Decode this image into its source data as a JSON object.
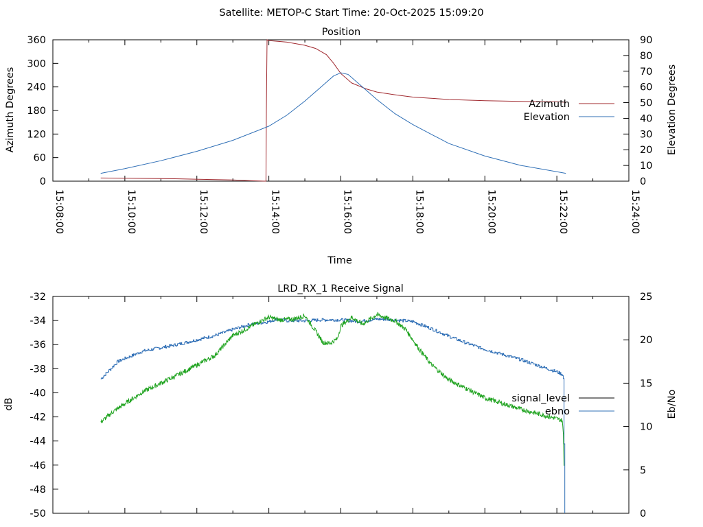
{
  "header": {
    "title": "Satellite: METOP-C    Start Time: 20-Oct-2025 15:09:20"
  },
  "colors": {
    "azimuth": "#a0282e",
    "elevation": "#2f6fb6",
    "signal_level": "#000000",
    "ebno_trace": "#1fa31f",
    "ebno_legend": "#2f6fb6"
  },
  "chart_data": [
    {
      "type": "line",
      "title": "Position",
      "xlabel": "Time",
      "ylabel": "Azimuth Degrees",
      "y2label": "Elevation Degrees",
      "x_ticks": [
        "15:08:00",
        "15:10:00",
        "15:12:00",
        "15:14:00",
        "15:16:00",
        "15:18:00",
        "15:20:00",
        "15:22:00",
        "15:24:00"
      ],
      "x_tick_minutes": [
        0,
        2,
        4,
        6,
        8,
        10,
        12,
        14,
        16
      ],
      "xlim": [
        0,
        16
      ],
      "y_ticks": [
        "0",
        "60",
        "120",
        "180",
        "240",
        "300",
        "360"
      ],
      "y_tick_values": [
        0,
        60,
        120,
        180,
        240,
        300,
        360
      ],
      "ylim": [
        0,
        360
      ],
      "y2_ticks": [
        "0",
        "10",
        "20",
        "30",
        "40",
        "50",
        "60",
        "70",
        "80",
        "90"
      ],
      "y2_tick_values": [
        0,
        10,
        20,
        30,
        40,
        50,
        60,
        70,
        80,
        90
      ],
      "y2lim": [
        0,
        90
      ],
      "legend_position": "right",
      "series": [
        {
          "name": "Azimuth",
          "axis": "y1",
          "x": [
            1.33,
            2.5,
            3.5,
            4.5,
            5.0,
            5.5,
            5.92,
            5.93,
            5.95,
            5.98,
            6.0,
            6.5,
            7.0,
            7.3,
            7.6,
            7.8,
            8.0,
            8.3,
            8.7,
            9.0,
            9.5,
            10.0,
            11.0,
            12.0,
            13.0,
            14.0,
            14.25
          ],
          "y": [
            8,
            7,
            6,
            4,
            3,
            1,
            0,
            180,
            360,
            359,
            358,
            354,
            346,
            338,
            322,
            300,
            274,
            250,
            235,
            227,
            220,
            214,
            208,
            205,
            203,
            202,
            201
          ]
        },
        {
          "name": "Elevation",
          "axis": "y2",
          "x": [
            1.33,
            2,
            3,
            4,
            5,
            6,
            6.5,
            7,
            7.5,
            7.8,
            8.0,
            8.2,
            8.5,
            9,
            9.5,
            10,
            11,
            12,
            13,
            14,
            14.25
          ],
          "y": [
            5,
            8,
            13,
            19,
            26,
            35,
            42,
            51,
            61,
            67,
            69,
            68,
            62,
            52,
            43,
            36,
            24,
            16,
            10,
            6,
            5
          ]
        }
      ]
    },
    {
      "type": "line",
      "title": "LRD_RX_1 Receive Signal",
      "xlabel": "",
      "ylabel": "dB",
      "y2label": "Eb/No",
      "xlim": [
        0,
        16
      ],
      "y_ticks": [
        "-50",
        "-48",
        "-46",
        "-44",
        "-42",
        "-40",
        "-38",
        "-36",
        "-34",
        "-32"
      ],
      "y_tick_values": [
        -50,
        -48,
        -46,
        -44,
        -42,
        -40,
        -38,
        -36,
        -34,
        -32
      ],
      "ylim": [
        -50,
        -32
      ],
      "y2_ticks": [
        "0",
        "5",
        "10",
        "15",
        "20",
        "25"
      ],
      "y2_tick_values": [
        0,
        5,
        10,
        15,
        20,
        25
      ],
      "y2lim": [
        0,
        25
      ],
      "legend_position": "right",
      "series": [
        {
          "name": "signal_level",
          "axis": "y1",
          "x": [],
          "y": []
        },
        {
          "name": "ebno",
          "axis": "y2",
          "x": [
            1.33,
            1.8,
            2.5,
            3.5,
            4.5,
            5.0,
            5.5,
            6.0,
            6.2,
            6.5,
            7.0,
            7.5,
            8.0,
            8.5,
            9.0,
            9.5,
            10.0,
            10.5,
            11.0,
            11.5,
            12.0,
            13.0,
            14.0,
            14.15,
            14.18,
            14.2,
            14.22
          ],
          "y": [
            15.5,
            17.5,
            18.7,
            19.5,
            20.5,
            21.2,
            21.8,
            22.1,
            22.4,
            22.2,
            22.2,
            22.3,
            22.3,
            22.1,
            22.4,
            22.3,
            22.1,
            21.3,
            20.4,
            19.6,
            18.9,
            17.7,
            16.3,
            16.0,
            15.5,
            8,
            0
          ]
        },
        {
          "name": "",
          "axis": "y2",
          "role": "green-trace",
          "x": [
            1.33,
            1.7,
            2.5,
            3.5,
            4.5,
            5.0,
            5.3,
            5.7,
            6.0,
            6.3,
            6.7,
            7.0,
            7.3,
            7.5,
            7.7,
            7.9,
            8.0,
            8.3,
            8.6,
            9.0,
            9.5,
            9.8,
            10.2,
            10.5,
            11.0,
            12.0,
            13.0,
            14.0,
            14.15,
            14.18,
            14.2
          ],
          "y": [
            10.5,
            11.8,
            14,
            16,
            18.2,
            20.5,
            21.1,
            22,
            22.6,
            22.3,
            22.4,
            22.8,
            21.0,
            19.7,
            19.6,
            20.1,
            21.6,
            22.6,
            21.8,
            22.9,
            22.2,
            21.2,
            18.8,
            17.2,
            15.4,
            13.3,
            12.0,
            10.9,
            10.7,
            9.0,
            5.5
          ]
        }
      ]
    }
  ]
}
